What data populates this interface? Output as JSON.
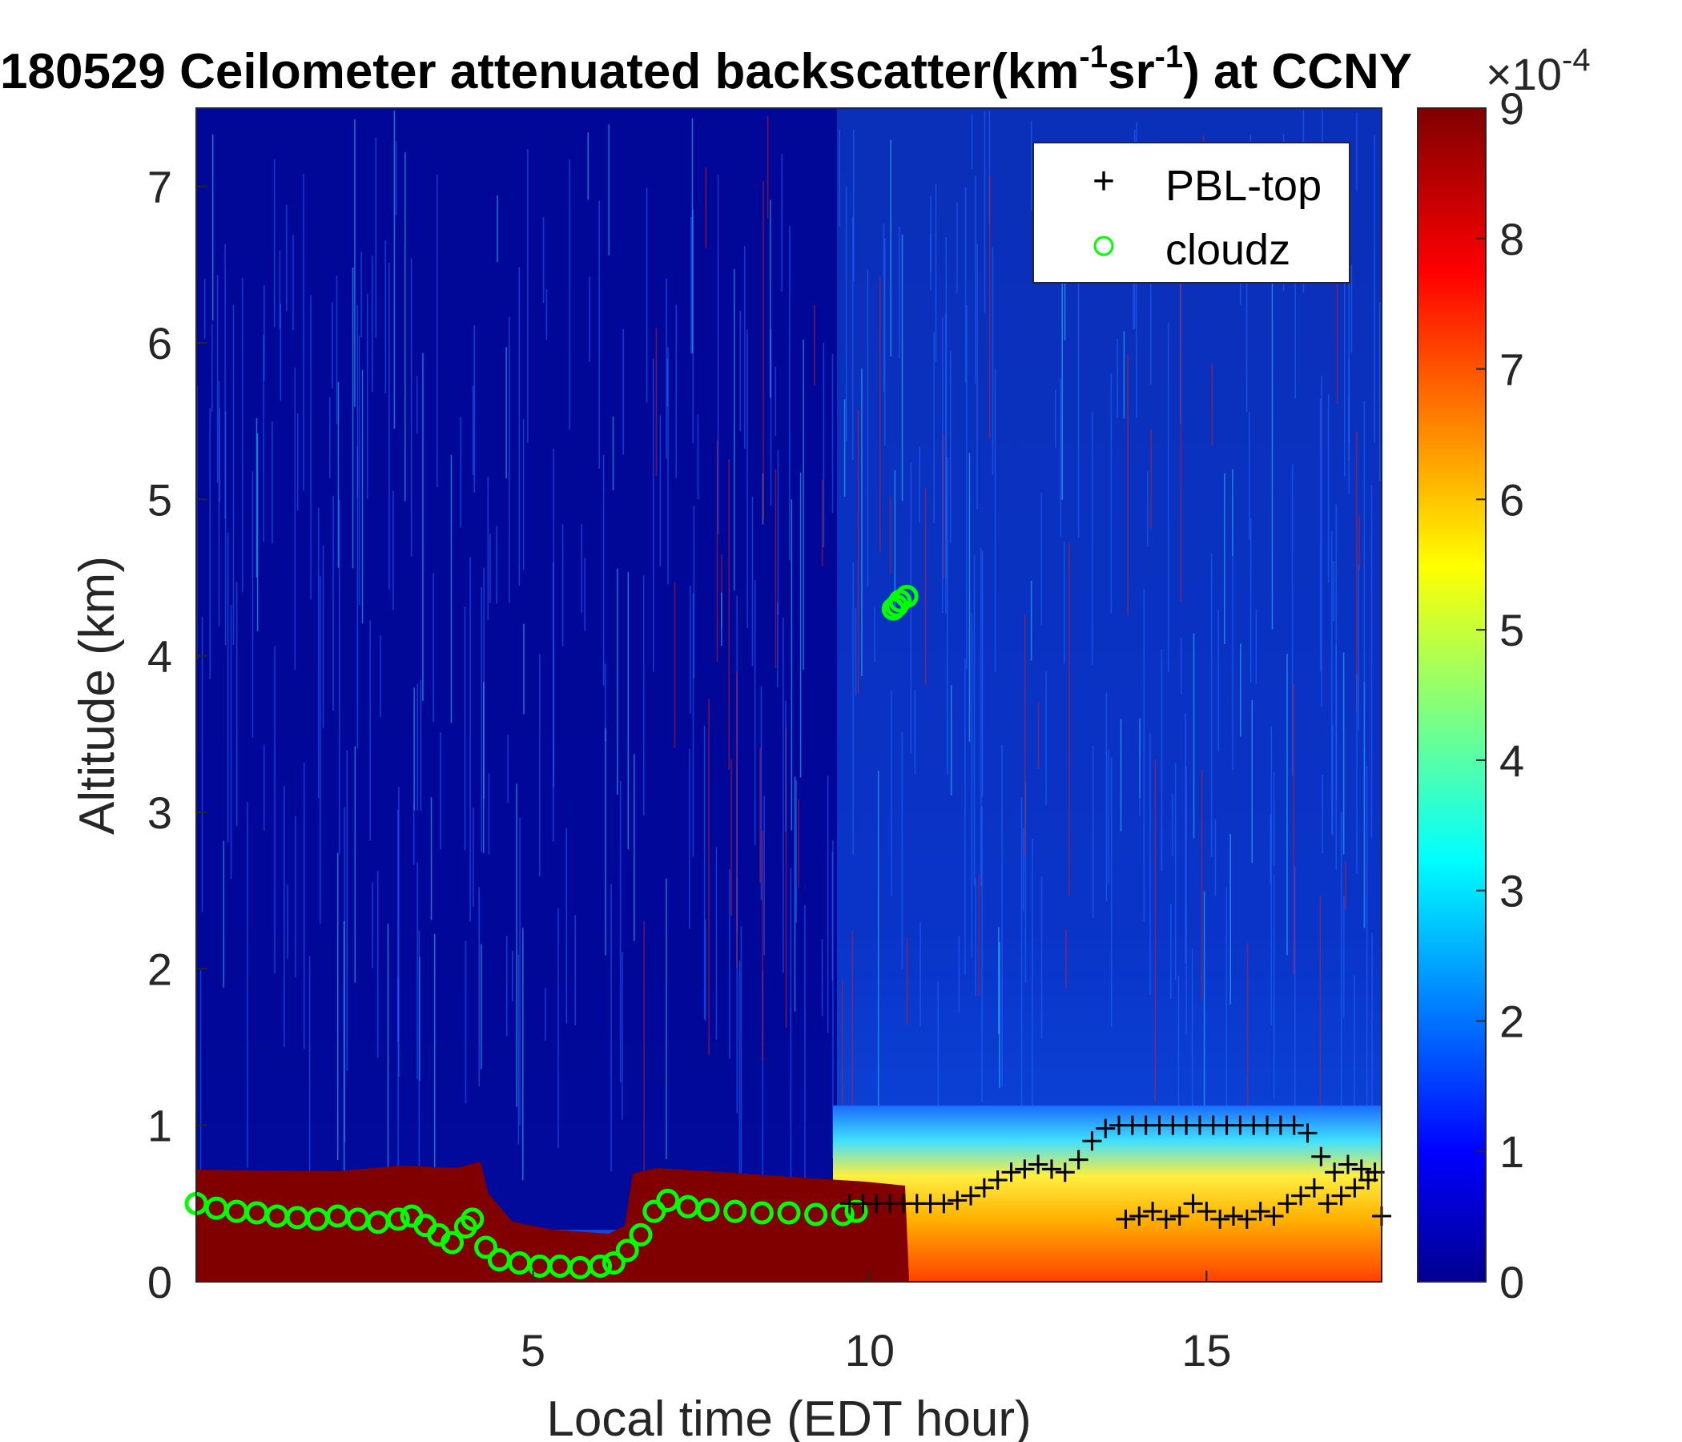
{
  "chart_data": {
    "type": "heatmap",
    "title_parts": {
      "prefix": "180529 Ceilometer attenuated backscatter(km",
      "sup1": "-1",
      "mid": "sr",
      "sup2": "-1",
      "suffix": ") at CCNY"
    },
    "xlabel": "Local time (EDT hour)",
    "ylabel": "Altitude (km)",
    "xlim": [
      0,
      17.6
    ],
    "ylim": [
      0,
      7.5
    ],
    "xticks": [
      5,
      10,
      15
    ],
    "yticks": [
      0,
      1,
      2,
      3,
      4,
      5,
      6,
      7
    ],
    "colorbar": {
      "range": [
        0,
        9
      ],
      "ticks": [
        0,
        1,
        2,
        3,
        4,
        5,
        6,
        7,
        8,
        9
      ],
      "multiplier_base": "×10",
      "multiplier_exp": "-4",
      "colormap": "jet"
    },
    "legend": {
      "placement": "top-right",
      "entries": [
        {
          "marker": "+",
          "label": "PBL-top",
          "color": "#000000"
        },
        {
          "marker": "o",
          "label": "cloudz",
          "color": "#00ff00"
        }
      ]
    },
    "series": [
      {
        "name": "cloudz",
        "marker": "o",
        "color": "#00ff00",
        "x": [
          0.0,
          0.3,
          0.6,
          0.9,
          1.2,
          1.5,
          1.8,
          2.1,
          2.4,
          2.7,
          3.0,
          3.2,
          3.4,
          3.6,
          3.8,
          4.0,
          4.1,
          4.3,
          4.5,
          4.8,
          5.1,
          5.4,
          5.7,
          6.0,
          6.2,
          6.4,
          6.6,
          6.8,
          7.0,
          7.3,
          7.6,
          8.0,
          8.4,
          8.8,
          9.2,
          9.6,
          9.8,
          10.35,
          10.45,
          10.55,
          10.4
        ],
        "y": [
          0.5,
          0.47,
          0.45,
          0.44,
          0.42,
          0.41,
          0.4,
          0.42,
          0.4,
          0.38,
          0.4,
          0.42,
          0.36,
          0.3,
          0.25,
          0.35,
          0.4,
          0.22,
          0.14,
          0.12,
          0.1,
          0.1,
          0.09,
          0.1,
          0.12,
          0.2,
          0.3,
          0.45,
          0.52,
          0.48,
          0.46,
          0.45,
          0.44,
          0.44,
          0.43,
          0.43,
          0.45,
          4.3,
          4.35,
          4.38,
          4.32
        ]
      },
      {
        "name": "PBL-top",
        "marker": "+",
        "color": "#000000",
        "x": [
          9.7,
          9.9,
          10.1,
          10.3,
          10.5,
          10.7,
          10.9,
          11.1,
          11.3,
          11.5,
          11.7,
          11.9,
          12.1,
          12.3,
          12.5,
          12.7,
          12.9,
          13.1,
          13.3,
          13.5,
          13.7,
          13.9,
          14.1,
          14.3,
          14.5,
          14.7,
          14.9,
          15.1,
          15.3,
          15.5,
          15.7,
          15.9,
          16.1,
          16.3,
          16.5,
          16.7,
          16.9,
          17.1,
          17.3,
          17.5,
          13.8,
          14.0,
          14.2,
          14.4,
          14.6,
          14.8,
          15.0,
          15.2,
          15.4,
          15.6,
          15.8,
          16.0,
          16.2,
          16.4,
          16.6,
          16.8,
          17.0,
          17.2,
          17.4,
          17.6
        ],
        "y": [
          0.5,
          0.5,
          0.5,
          0.5,
          0.5,
          0.5,
          0.5,
          0.5,
          0.52,
          0.55,
          0.6,
          0.65,
          0.7,
          0.72,
          0.75,
          0.72,
          0.7,
          0.78,
          0.9,
          0.98,
          1.0,
          1.0,
          1.0,
          1.0,
          1.0,
          1.0,
          1.0,
          1.0,
          1.0,
          1.0,
          1.0,
          1.0,
          1.0,
          1.0,
          0.95,
          0.8,
          0.7,
          0.75,
          0.72,
          0.7,
          0.4,
          0.42,
          0.45,
          0.4,
          0.42,
          0.5,
          0.45,
          0.4,
          0.42,
          0.4,
          0.45,
          0.42,
          0.5,
          0.55,
          0.6,
          0.5,
          0.55,
          0.6,
          0.65,
          0.42
        ]
      }
    ]
  }
}
